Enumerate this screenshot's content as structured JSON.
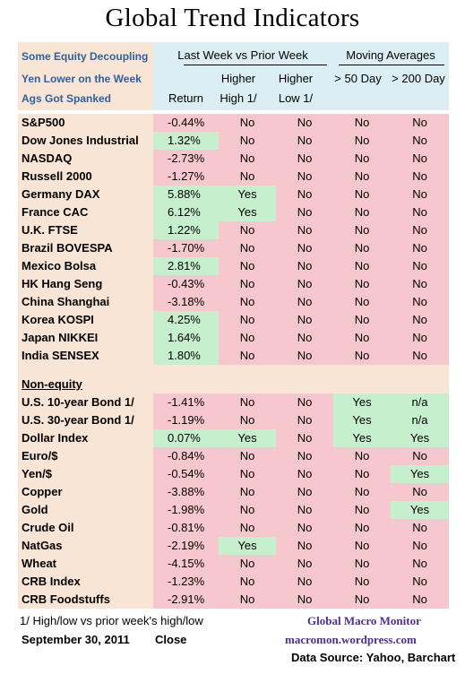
{
  "title": "Global Trend Indicators",
  "notes": [
    "Some Equity Decoupling",
    "Yen Lower on the Week",
    "Ags Got Spanked"
  ],
  "header": {
    "group1": "Last Week vs Prior Week",
    "group2": "Moving Averages",
    "return": "Return",
    "higher_high_1": "Higher",
    "higher_high_2": "High 1/",
    "higher_low_1": "Higher",
    "higher_low_2": "Low 1/",
    "ma50": "> 50 Day",
    "ma200": "> 200 Day"
  },
  "equity_rows": [
    {
      "name": "S&P500",
      "ret": "-0.44%",
      "hi": "No",
      "lo": "No",
      "ma50": "No",
      "ma200": "No"
    },
    {
      "name": "Dow Jones Industrial",
      "ret": "1.32%",
      "hi": "No",
      "lo": "No",
      "ma50": "No",
      "ma200": "No"
    },
    {
      "name": "NASDAQ",
      "ret": "-2.73%",
      "hi": "No",
      "lo": "No",
      "ma50": "No",
      "ma200": "No"
    },
    {
      "name": "Russell 2000",
      "ret": "-1.27%",
      "hi": "No",
      "lo": "No",
      "ma50": "No",
      "ma200": "No"
    },
    {
      "name": "Germany DAX",
      "ret": "5.88%",
      "hi": "Yes",
      "lo": "No",
      "ma50": "No",
      "ma200": "No"
    },
    {
      "name": "France CAC",
      "ret": "6.12%",
      "hi": "Yes",
      "lo": "No",
      "ma50": "No",
      "ma200": "No"
    },
    {
      "name": "U.K. FTSE",
      "ret": "1.22%",
      "hi": "No",
      "lo": "No",
      "ma50": "No",
      "ma200": "No"
    },
    {
      "name": "Brazil BOVESPA",
      "ret": "-1.70%",
      "hi": "No",
      "lo": "No",
      "ma50": "No",
      "ma200": "No"
    },
    {
      "name": "Mexico Bolsa",
      "ret": "2.81%",
      "hi": "No",
      "lo": "No",
      "ma50": "No",
      "ma200": "No"
    },
    {
      "name": "HK  Hang Seng",
      "ret": "-0.43%",
      "hi": "No",
      "lo": "No",
      "ma50": "No",
      "ma200": "No"
    },
    {
      "name": "China Shanghai",
      "ret": "-3.18%",
      "hi": "No",
      "lo": "No",
      "ma50": "No",
      "ma200": "No"
    },
    {
      "name": "Korea KOSPI",
      "ret": "4.25%",
      "hi": "No",
      "lo": "No",
      "ma50": "No",
      "ma200": "No"
    },
    {
      "name": "Japan NIKKEI",
      "ret": "1.64%",
      "hi": "No",
      "lo": "No",
      "ma50": "No",
      "ma200": "No"
    },
    {
      "name": "India SENSEX",
      "ret": "1.80%",
      "hi": "No",
      "lo": "No",
      "ma50": "No",
      "ma200": "No"
    }
  ],
  "section_label": "Non-equity",
  "nonequity_rows": [
    {
      "name": "U.S. 10-year Bond 1/",
      "ret": "-1.41%",
      "hi": "No",
      "lo": "No",
      "ma50": "Yes",
      "ma200": "n/a"
    },
    {
      "name": "U.S. 30-year Bond 1/",
      "ret": "-1.19%",
      "hi": "No",
      "lo": "No",
      "ma50": "Yes",
      "ma200": "n/a"
    },
    {
      "name": "Dollar Index",
      "ret": "0.07%",
      "hi": "Yes",
      "lo": "No",
      "ma50": "Yes",
      "ma200": "Yes"
    },
    {
      "name": "Euro/$",
      "ret": "-0.84%",
      "hi": "No",
      "lo": "No",
      "ma50": "No",
      "ma200": "No"
    },
    {
      "name": "Yen/$",
      "ret": "-0.54%",
      "hi": "No",
      "lo": "No",
      "ma50": "No",
      "ma200": "Yes"
    },
    {
      "name": "Copper",
      "ret": "-3.88%",
      "hi": "No",
      "lo": "No",
      "ma50": "No",
      "ma200": "No"
    },
    {
      "name": "Gold",
      "ret": "-1.98%",
      "hi": "No",
      "lo": "No",
      "ma50": "No",
      "ma200": "Yes"
    },
    {
      "name": "Crude Oil",
      "ret": "-0.81%",
      "hi": "No",
      "lo": "No",
      "ma50": "No",
      "ma200": "No"
    },
    {
      "name": "NatGas",
      "ret": "-2.19%",
      "hi": "Yes",
      "lo": "No",
      "ma50": "No",
      "ma200": "No"
    },
    {
      "name": "Wheat",
      "ret": "-4.15%",
      "hi": "No",
      "lo": "No",
      "ma50": "No",
      "ma200": "No"
    },
    {
      "name": "CRB Index",
      "ret": "-1.23%",
      "hi": "No",
      "lo": "No",
      "ma50": "No",
      "ma200": "No"
    },
    {
      "name": "CRB Foodstuffs",
      "ret": "-2.91%",
      "hi": "No",
      "lo": "No",
      "ma50": "No",
      "ma200": "No"
    }
  ],
  "footer": {
    "footnote": "1/  High/low vs prior week's high/low",
    "date": "September 30, 2011",
    "close": "Close",
    "brand": "Global Macro Monitor",
    "site": "macromon.wordpress.com",
    "source": "Data Source: Yahoo, Barchart"
  },
  "colors": {
    "positive": "#c6efce",
    "negative": "#f7c7ce",
    "name_bg": "#f8e5d6",
    "header_bg": "#dbeef4",
    "note_text": "#31609c",
    "brand_text": "#4f2f8f"
  }
}
